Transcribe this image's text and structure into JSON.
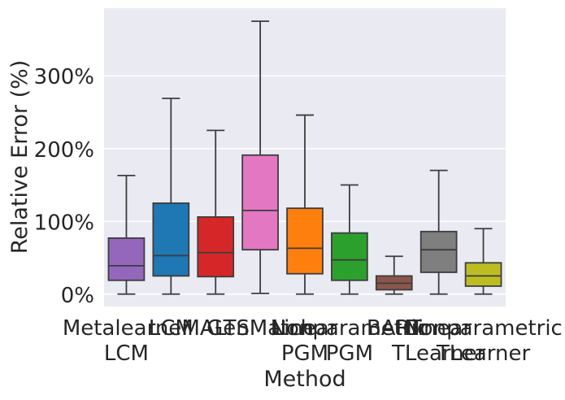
{
  "chart_data": {
    "type": "box",
    "xlabel": "Method",
    "ylabel": "Relative Error (%)",
    "ylim": [
      -17,
      393
    ],
    "y_ticks": [
      {
        "value": 0,
        "label": "0%"
      },
      {
        "value": 100,
        "label": "100%"
      },
      {
        "value": 200,
        "label": "200%"
      },
      {
        "value": 300,
        "label": "300%"
      }
    ],
    "grid": true,
    "categories": [
      {
        "lines": [
          "Metalearner",
          "LCM"
        ],
        "color": "#9467bd",
        "whisker_low": 0,
        "q1": 19,
        "median": 39,
        "q3": 77,
        "whisker_high": 163
      },
      {
        "lines": [
          "LCM"
        ],
        "color": "#1f77b4",
        "whisker_low": 0,
        "q1": 25,
        "median": 53,
        "q3": 125,
        "whisker_high": 269
      },
      {
        "lines": [
          "MALTS"
        ],
        "color": "#d62728",
        "whisker_low": 0,
        "q1": 24,
        "median": 57,
        "q3": 106,
        "whisker_high": 225
      },
      {
        "lines": [
          "GenMatch"
        ],
        "color": "#e377c2",
        "whisker_low": 1,
        "q1": 61,
        "median": 115,
        "q3": 191,
        "whisker_high": 375
      },
      {
        "lines": [
          "Linear",
          "PGM"
        ],
        "color": "#ff7f0e",
        "whisker_low": 0,
        "q1": 28,
        "median": 63,
        "q3": 118,
        "whisker_high": 246
      },
      {
        "lines": [
          "Nonparametric",
          "PGM"
        ],
        "color": "#2ca02c",
        "whisker_low": 0,
        "q1": 19,
        "median": 47,
        "q3": 84,
        "whisker_high": 150
      },
      {
        "lines": [
          "BART"
        ],
        "color": "#8c564b",
        "whisker_low": 0,
        "q1": 6,
        "median": 15,
        "q3": 25,
        "whisker_high": 52
      },
      {
        "lines": [
          "Linear",
          "TLearner"
        ],
        "color": "#7f7f7f",
        "whisker_low": 0,
        "q1": 30,
        "median": 61,
        "q3": 86,
        "whisker_high": 170
      },
      {
        "lines": [
          "Nonparametric",
          "TLearner"
        ],
        "color": "#bcbd22",
        "whisker_low": 0,
        "q1": 11,
        "median": 25,
        "q3": 43,
        "whisker_high": 90
      }
    ]
  }
}
